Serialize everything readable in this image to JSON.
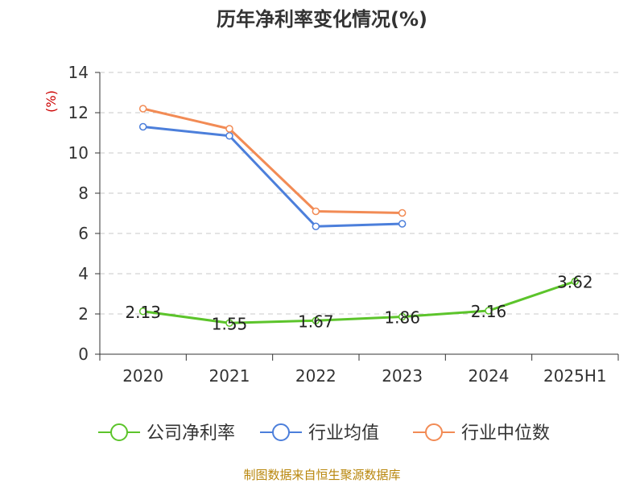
{
  "chart_data": {
    "type": "line",
    "title": "历年净利率变化情况(%)",
    "ylabel": "(%)",
    "categories": [
      "2020",
      "2021",
      "2022",
      "2023",
      "2024",
      "2025H1"
    ],
    "ylim": [
      0,
      14
    ],
    "yticks": [
      0,
      2,
      4,
      6,
      8,
      10,
      12,
      14
    ],
    "grid": true,
    "legend_position": "bottom",
    "series": [
      {
        "name": "公司净利率",
        "color": "#5cc42b",
        "values": [
          2.13,
          1.55,
          1.67,
          1.86,
          2.16,
          3.62
        ],
        "labels": [
          "2.13",
          "1.55",
          "1.67",
          "1.86",
          "2.16",
          "3.62"
        ]
      },
      {
        "name": "行业均值",
        "color": "#4c7fdb",
        "values": [
          11.3,
          10.85,
          6.35,
          6.48,
          null,
          null
        ]
      },
      {
        "name": "行业中位数",
        "color": "#f28b55",
        "values": [
          12.2,
          11.2,
          7.1,
          7.02,
          null,
          null
        ]
      }
    ],
    "source": "制图数据来自恒生聚源数据库"
  }
}
